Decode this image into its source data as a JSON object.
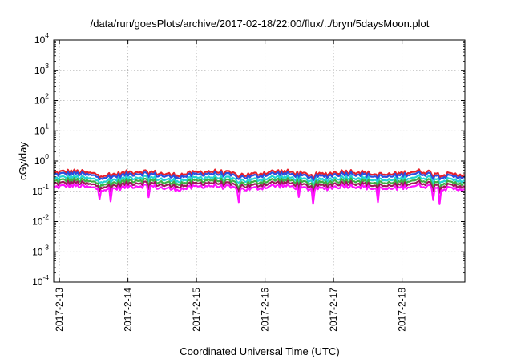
{
  "chart_data": {
    "type": "line",
    "title": "/data/run/goesPlots/archive/2017-02-18/22:00/flux/../bryn/5daysMoon.plot",
    "xlabel": "Coordinated Universal Time (UTC)",
    "ylabel": "cGy/day",
    "yscale": "log",
    "ylim": [
      0.0001,
      10000
    ],
    "y_ticks": [
      {
        "base": "10",
        "exp": "4"
      },
      {
        "base": "10",
        "exp": "3"
      },
      {
        "base": "10",
        "exp": "2"
      },
      {
        "base": "10",
        "exp": "1"
      },
      {
        "base": "10",
        "exp": "0"
      },
      {
        "base": "10",
        "exp": "-1"
      },
      {
        "base": "10",
        "exp": "-2"
      },
      {
        "base": "10",
        "exp": "-3"
      },
      {
        "base": "10",
        "exp": "-4"
      }
    ],
    "x_range": [
      "2017-02-12 22:00",
      "2017-02-18 22:00"
    ],
    "x_ticks": [
      "2017-2-13",
      "2017-2-14",
      "2017-2-15",
      "2017-2-16",
      "2017-2-17",
      "2017-2-18"
    ],
    "grid": true,
    "legend": "none",
    "series": [
      {
        "color": "#e8202a",
        "level": 0.4
      },
      {
        "color": "#2a4fe0",
        "level": 0.34
      },
      {
        "color": "#22d3d3",
        "level": 0.26
      },
      {
        "color": "#3cb043",
        "level": 0.21
      },
      {
        "color": "#9b1a5a",
        "level": 0.17
      },
      {
        "color": "#ff10ff",
        "level": 0.135
      }
    ]
  }
}
